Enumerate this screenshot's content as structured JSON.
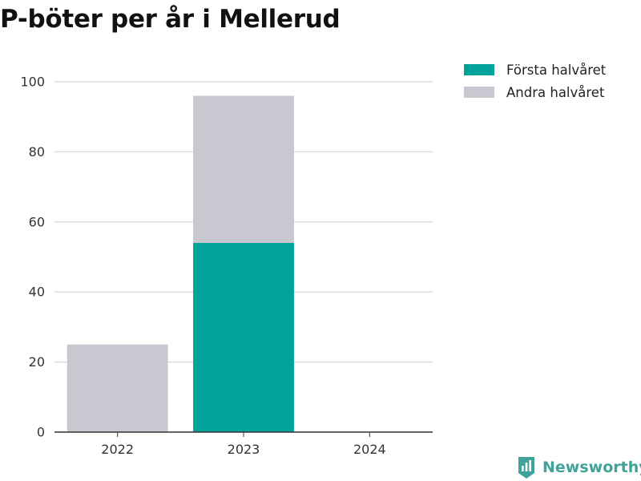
{
  "title": "P-böter per år i Mellerud",
  "colors": {
    "first_half": "#00a39a",
    "second_half": "#c8c8d0",
    "grid": "#dddddd",
    "axis": "#333333",
    "brand": "#3fa39a"
  },
  "brand": {
    "name": "Newsworthy",
    "icon": "newsworthy-chart-icon"
  },
  "chart_data": {
    "type": "bar",
    "stacked": true,
    "categories": [
      "2022",
      "2023",
      "2024"
    ],
    "series": [
      {
        "name": "Första halvåret",
        "values": [
          0,
          54,
          0
        ]
      },
      {
        "name": "Andra halvåret",
        "values": [
          25,
          42,
          0
        ]
      }
    ],
    "title": "P-böter per år i Mellerud",
    "xlabel": "",
    "ylabel": "",
    "ylim": [
      0,
      100
    ],
    "yticks": [
      0,
      20,
      40,
      60,
      80,
      100
    ],
    "grid": true,
    "legend_position": "top-right"
  }
}
